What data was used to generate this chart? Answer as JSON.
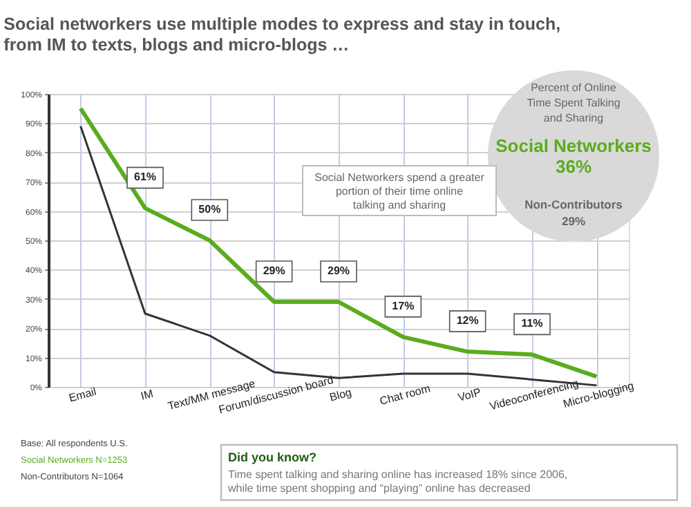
{
  "chart_data": {
    "type": "line",
    "title": "Social networkers use multiple modes to express and stay in touch, from IM to texts, blogs and micro-blogs …",
    "categories": [
      "Email",
      "IM",
      "Text/MM message",
      "Forum/discussion board",
      "Blog",
      "Chat room",
      "VoIP",
      "Videoconferencing",
      "Micro-blogging"
    ],
    "series": [
      {
        "color": "#5aac1e",
        "values": [
          95,
          61,
          50,
          29,
          29,
          17,
          12,
          11,
          3.5
        ],
        "value_labels": [
          null,
          "61%",
          "50%",
          "29%",
          "29%",
          "17%",
          "12%",
          "11%",
          null
        ]
      },
      {
        "color": "#333333",
        "values": [
          89,
          25,
          17.5,
          5,
          3,
          4.5,
          4.5,
          2.5,
          0.5
        ]
      }
    ],
    "ylim": [
      0,
      100
    ],
    "yticks": [
      {
        "value": 0,
        "label": "0%"
      },
      {
        "value": 10,
        "label": "10%"
      },
      {
        "value": 20,
        "label": "20%"
      },
      {
        "value": 30,
        "label": "30%"
      },
      {
        "value": 40,
        "label": "40%"
      },
      {
        "value": 50,
        "label": "50%"
      },
      {
        "value": 60,
        "label": "60%"
      },
      {
        "value": 70,
        "label": "70%"
      },
      {
        "value": 80,
        "label": "80%"
      },
      {
        "value": 90,
        "label": "90%"
      },
      {
        "value": 100,
        "label": "100%"
      }
    ],
    "grid": true,
    "marker": "none",
    "line_style": "solid",
    "annotations": [
      "Social Networkers spend  a greater portion of their time online talking and sharing",
      "Percent of Online Time Spent Talking and Sharing",
      "Social Networkers 36%",
      "Non-Contributors 29%",
      "Base: All respondents U.S.",
      "Social Networkers N=1253",
      "Non-Contributors N=1064",
      "Did you know?",
      "Time spent talking and sharing online has increased 18% since 2006, while time spent shopping and “playing” online has decreased"
    ]
  }
}
